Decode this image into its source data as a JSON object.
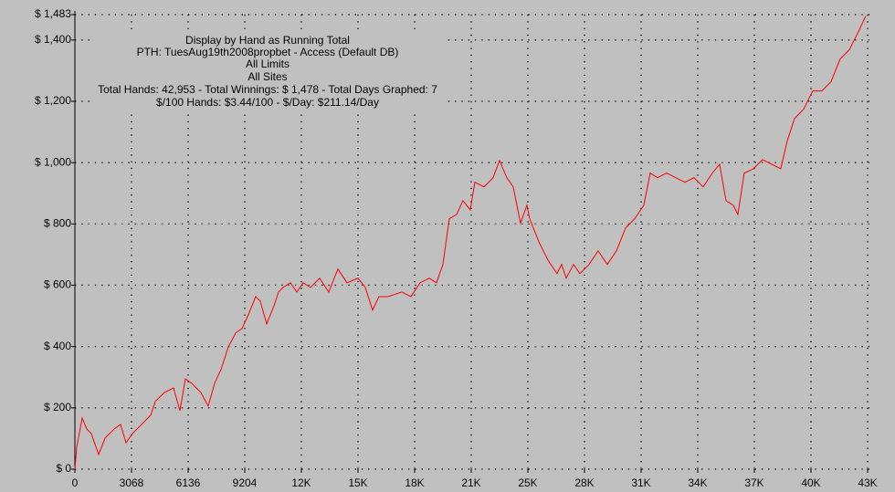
{
  "chart_data": {
    "type": "line",
    "title": "Display by Hand as Running Total",
    "subtitle": [
      "PTH: TuesAug19th2008propbet - Access (Default DB)",
      "All Limits",
      "All Sites",
      "Total Hands: 42,953 - Total Winnings: $ 1,478 - Total Days Graphed: 7",
      "$/100 Hands: $3.44/100 - $/Day: $211.14/Day"
    ],
    "x": [
      0,
      99,
      396,
      643,
      891,
      1286,
      1633,
      2128,
      2474,
      2771,
      3117,
      3612,
      4107,
      4354,
      4849,
      5344,
      5690,
      5987,
      6333,
      6828,
      7224,
      7570,
      7917,
      8313,
      8708,
      9055,
      9401,
      9797,
      10044,
      10391,
      10787,
      11034,
      11281,
      11677,
      12024,
      12370,
      12766,
      13261,
      13756,
      14250,
      14745,
      15339,
      15735,
      16130,
      16477,
      16972,
      17714,
      18209,
      18703,
      19198,
      19594,
      19940,
      20287,
      20683,
      21029,
      21425,
      21672,
      22167,
      22662,
      23008,
      23404,
      23750,
      24146,
      24493,
      24641,
      25136,
      25631,
      26126,
      26373,
      26621,
      27017,
      27363,
      27858,
      28352,
      28847,
      29342,
      29836,
      30331,
      30826,
      31172,
      31568,
      32063,
      32558,
      33053,
      33547,
      34042,
      34537,
      34933,
      35279,
      35675,
      35922,
      36268,
      36763,
      37258,
      37753,
      38247,
      38594,
      38990,
      39484,
      39979,
      40474,
      40969,
      41463,
      41958,
      42453,
      42849
    ],
    "series": [
      {
        "color": "#ff0000",
        "values": [
          0,
          72,
          167,
          131,
          116,
          48,
          101,
          131,
          146,
          86,
          116,
          146,
          176,
          221,
          250,
          265,
          191,
          295,
          280,
          250,
          206,
          280,
          325,
          399,
          444,
          459,
          504,
          563,
          548,
          474,
          533,
          578,
          593,
          608,
          578,
          608,
          593,
          623,
          578,
          653,
          608,
          623,
          593,
          519,
          563,
          563,
          578,
          563,
          608,
          623,
          608,
          668,
          817,
          831,
          876,
          846,
          936,
          921,
          951,
          1007,
          951,
          921,
          802,
          861,
          817,
          742,
          682,
          638,
          668,
          623,
          668,
          638,
          668,
          712,
          668,
          712,
          787,
          817,
          861,
          966,
          951,
          966,
          951,
          936,
          951,
          921,
          966,
          995,
          876,
          861,
          831,
          966,
          980,
          1010,
          995,
          980,
          1070,
          1144,
          1174,
          1234,
          1234,
          1264,
          1338,
          1368,
          1427,
          1478
        ]
      }
    ],
    "xlim": [
      0,
      42952
    ],
    "xticks": [
      0,
      3068,
      6136,
      9204,
      {
        "value": 12272,
        "label": "12K"
      },
      {
        "value": 15340,
        "label": "15K"
      },
      {
        "value": 18408,
        "label": "18K"
      },
      {
        "value": 21476,
        "label": "21K"
      },
      {
        "value": 24544,
        "label": "25K"
      },
      {
        "value": 27612,
        "label": "28K"
      },
      {
        "value": 30680,
        "label": "31K"
      },
      {
        "value": 33748,
        "label": "34K"
      },
      {
        "value": 36816,
        "label": "37K"
      },
      {
        "value": 39884,
        "label": "40K"
      },
      {
        "value": 42952,
        "label": "43K"
      }
    ],
    "ylim": [
      0,
      1483
    ],
    "yticks": [
      {
        "value": 0,
        "label": "$ 0"
      },
      {
        "value": 200,
        "label": "$ 200"
      },
      {
        "value": 400,
        "label": "$ 400"
      },
      {
        "value": 600,
        "label": "$ 600"
      },
      {
        "value": 800,
        "label": "$ 800"
      },
      {
        "value": 1000,
        "label": "$ 1,000"
      },
      {
        "value": 1200,
        "label": "$ 1,200"
      },
      {
        "value": 1400,
        "label": "$ 1,400"
      },
      {
        "value": 1483,
        "label": "$ 1,483"
      }
    ],
    "grid": true
  }
}
